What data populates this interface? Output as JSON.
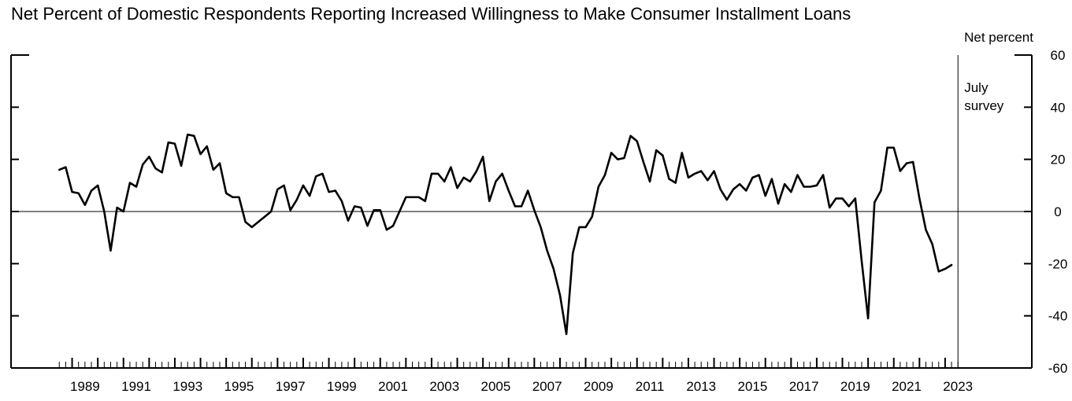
{
  "chart_data": {
    "type": "line",
    "title": "Net Percent of Domestic Respondents Reporting Increased Willingness to Make Consumer Installment Loans",
    "ylabel": "Net percent",
    "ylim": [
      -60,
      60
    ],
    "xlim": [
      1988.4,
      2023.8
    ],
    "yticks": [
      60,
      40,
      20,
      0,
      -20,
      -40,
      -60
    ],
    "xticks": [
      "1989",
      "1991",
      "1993",
      "1995",
      "1997",
      "1999",
      "2001",
      "2003",
      "2005",
      "2007",
      "2009",
      "2011",
      "2013",
      "2015",
      "2017",
      "2019",
      "2021",
      "2023"
    ],
    "annotation": {
      "lines": [
        "July",
        "survey"
      ],
      "x": 2023.5
    },
    "grid": false,
    "series": [
      {
        "values": [
          [
            1988.5,
            16
          ],
          [
            1988.75,
            17
          ],
          [
            1989.0,
            7.5
          ],
          [
            1989.25,
            7
          ],
          [
            1989.5,
            2.5
          ],
          [
            1989.75,
            8
          ],
          [
            1990.0,
            10
          ],
          [
            1990.25,
            0
          ],
          [
            1990.5,
            -15
          ],
          [
            1990.75,
            1.5
          ],
          [
            1991.0,
            0
          ],
          [
            1991.25,
            11
          ],
          [
            1991.5,
            9.5
          ],
          [
            1991.75,
            18
          ],
          [
            1992.0,
            21
          ],
          [
            1992.25,
            16.5
          ],
          [
            1992.5,
            15
          ],
          [
            1992.75,
            26.5
          ],
          [
            1993.0,
            26
          ],
          [
            1993.25,
            17.5
          ],
          [
            1993.5,
            29.5
          ],
          [
            1993.75,
            29
          ],
          [
            1994.0,
            22
          ],
          [
            1994.25,
            25
          ],
          [
            1994.5,
            16
          ],
          [
            1994.75,
            18.5
          ],
          [
            1995.0,
            7
          ],
          [
            1995.25,
            5.5
          ],
          [
            1995.5,
            5.5
          ],
          [
            1995.75,
            -4
          ],
          [
            1996.0,
            -6
          ],
          [
            1996.25,
            -4
          ],
          [
            1996.5,
            -2
          ],
          [
            1996.75,
            0
          ],
          [
            1997.0,
            8.5
          ],
          [
            1997.25,
            10
          ],
          [
            1997.5,
            0.5
          ],
          [
            1997.75,
            4.5
          ],
          [
            1998.0,
            10
          ],
          [
            1998.25,
            6
          ],
          [
            1998.5,
            13.5
          ],
          [
            1998.75,
            14.5
          ],
          [
            1999.0,
            7.5
          ],
          [
            1999.25,
            8
          ],
          [
            1999.5,
            4
          ],
          [
            1999.75,
            -3.5
          ],
          [
            2000.0,
            2
          ],
          [
            2000.25,
            1.5
          ],
          [
            2000.5,
            -5.5
          ],
          [
            2000.75,
            0.5
          ],
          [
            2001.0,
            0.5
          ],
          [
            2001.25,
            -7
          ],
          [
            2001.5,
            -5.5
          ],
          [
            2001.75,
            0
          ],
          [
            2002.0,
            5.5
          ],
          [
            2002.25,
            5.5
          ],
          [
            2002.5,
            5.5
          ],
          [
            2002.75,
            4
          ],
          [
            2003.0,
            14.5
          ],
          [
            2003.25,
            14.5
          ],
          [
            2003.5,
            11.5
          ],
          [
            2003.75,
            17
          ],
          [
            2004.0,
            9
          ],
          [
            2004.25,
            13
          ],
          [
            2004.5,
            11.5
          ],
          [
            2004.75,
            15.5
          ],
          [
            2005.0,
            21
          ],
          [
            2005.25,
            4
          ],
          [
            2005.5,
            11.5
          ],
          [
            2005.75,
            14.5
          ],
          [
            2006.0,
            8
          ],
          [
            2006.25,
            2
          ],
          [
            2006.5,
            2
          ],
          [
            2006.75,
            8
          ],
          [
            2007.0,
            0.5
          ],
          [
            2007.25,
            -6
          ],
          [
            2007.5,
            -15
          ],
          [
            2007.75,
            -22
          ],
          [
            2008.0,
            -32
          ],
          [
            2008.25,
            -47
          ],
          [
            2008.5,
            -16
          ],
          [
            2008.75,
            -6
          ],
          [
            2009.0,
            -6
          ],
          [
            2009.25,
            -2
          ],
          [
            2009.5,
            9.5
          ],
          [
            2009.75,
            14
          ],
          [
            2010.0,
            22.5
          ],
          [
            2010.25,
            20
          ],
          [
            2010.5,
            20.5
          ],
          [
            2010.75,
            29
          ],
          [
            2011.0,
            27
          ],
          [
            2011.25,
            19
          ],
          [
            2011.5,
            11.5
          ],
          [
            2011.75,
            23.5
          ],
          [
            2012.0,
            21.5
          ],
          [
            2012.25,
            12.5
          ],
          [
            2012.5,
            11
          ],
          [
            2012.75,
            22.5
          ],
          [
            2013.0,
            13
          ],
          [
            2013.25,
            14.5
          ],
          [
            2013.5,
            15.5
          ],
          [
            2013.75,
            12
          ],
          [
            2014.0,
            15.5
          ],
          [
            2014.25,
            8.5
          ],
          [
            2014.5,
            4.5
          ],
          [
            2014.75,
            8.5
          ],
          [
            2015.0,
            10.5
          ],
          [
            2015.25,
            8
          ],
          [
            2015.5,
            13
          ],
          [
            2015.75,
            14
          ],
          [
            2016.0,
            6
          ],
          [
            2016.25,
            12.5
          ],
          [
            2016.5,
            3
          ],
          [
            2016.75,
            10.5
          ],
          [
            2017.0,
            7.5
          ],
          [
            2017.25,
            14
          ],
          [
            2017.5,
            9.5
          ],
          [
            2017.75,
            9.5
          ],
          [
            2018.0,
            10
          ],
          [
            2018.25,
            14
          ],
          [
            2018.5,
            1.5
          ],
          [
            2018.75,
            5
          ],
          [
            2019.0,
            5
          ],
          [
            2019.25,
            2
          ],
          [
            2019.5,
            5
          ],
          [
            2019.75,
            -19
          ],
          [
            2020.0,
            -41
          ],
          [
            2020.25,
            3.5
          ],
          [
            2020.5,
            8
          ],
          [
            2020.75,
            24.5
          ],
          [
            2021.0,
            24.5
          ],
          [
            2021.25,
            15.5
          ],
          [
            2021.5,
            18.5
          ],
          [
            2021.75,
            19
          ],
          [
            2022.0,
            5
          ],
          [
            2022.25,
            -7
          ],
          [
            2022.5,
            -12.5
          ],
          [
            2022.75,
            -23
          ],
          [
            2023.0,
            -22
          ],
          [
            2023.25,
            -20.5
          ]
        ]
      }
    ]
  }
}
